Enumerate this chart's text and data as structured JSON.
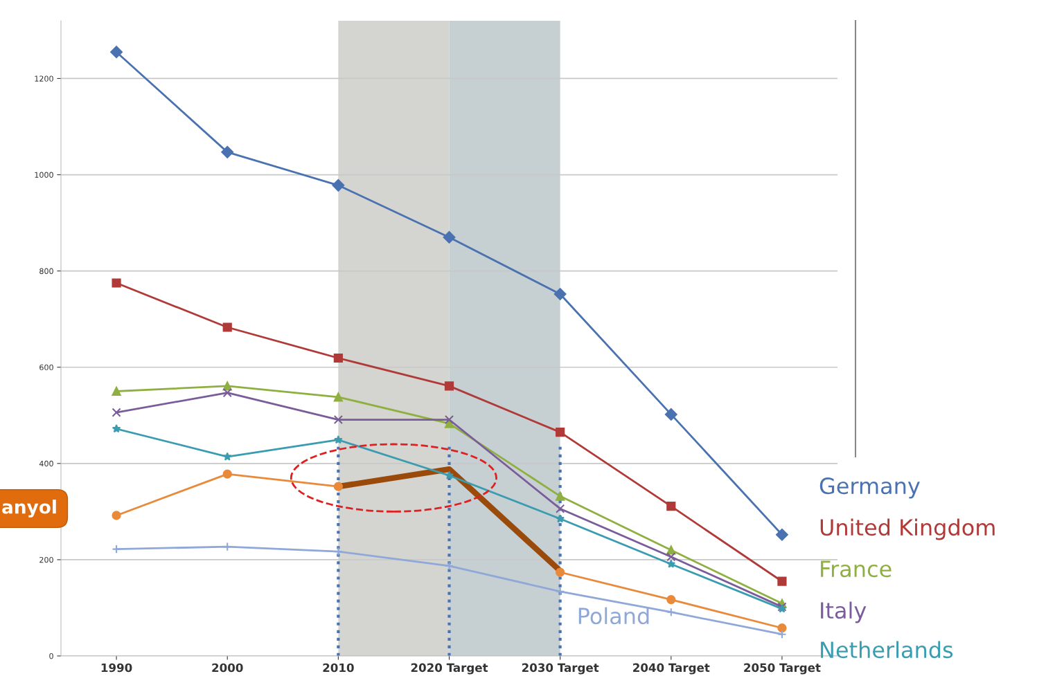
{
  "chart_data": {
    "type": "line",
    "categories": [
      "1990",
      "2000",
      "2010",
      "2020 Target",
      "2030 Target",
      "2040 Target",
      "2050 Target"
    ],
    "ylim": [
      0,
      1320
    ],
    "yticks": [
      0,
      200,
      400,
      600,
      800,
      1000,
      1200
    ],
    "grid": "y",
    "series": [
      {
        "name": "Germany",
        "color": "#4a72b0",
        "marker": "diamond",
        "values": [
          1255,
          1047,
          978,
          870,
          752,
          502,
          252
        ]
      },
      {
        "name": "United Kingdom",
        "color": "#b03a38",
        "marker": "square",
        "values": [
          775,
          683,
          619,
          561,
          465,
          311,
          155
        ]
      },
      {
        "name": "France",
        "color": "#8fb040",
        "marker": "triangle",
        "values": [
          550,
          561,
          538,
          483,
          332,
          220,
          109
        ]
      },
      {
        "name": "Italy",
        "color": "#7a5c9a",
        "marker": "cross",
        "values": [
          506,
          547,
          491,
          491,
          306,
          206,
          102
        ]
      },
      {
        "name": "Netherlands",
        "color": "#3a9cb0",
        "marker": "star",
        "values": [
          472,
          414,
          449,
          375,
          285,
          191,
          98
        ]
      },
      {
        "color": "#e88a3a",
        "marker": "circle",
        "values": [
          292,
          378,
          352,
          null,
          174,
          117,
          58
        ]
      },
      {
        "name": "Poland",
        "color": "#8fa8d8",
        "marker": "plus",
        "values": [
          222,
          227,
          217,
          187,
          134,
          91,
          45
        ]
      },
      {
        "color": "#9a4a0a",
        "marker": "none",
        "values": [
          null,
          null,
          352,
          388,
          177,
          null,
          null
        ]
      }
    ],
    "bands": [
      {
        "axis": "x",
        "from": "2010",
        "to": "2020 Target",
        "color": "#d4d4d0"
      },
      {
        "axis": "x",
        "from": "2020 Target",
        "to": "2030 Target",
        "color": "#c6cfd2"
      }
    ],
    "ref_lines": [
      {
        "axis": "x",
        "value": "2010",
        "color": "#4a72b0",
        "line_style": "dotted"
      },
      {
        "axis": "x",
        "value": "2020 Target",
        "color": "#4a72b0",
        "line_style": "dotted"
      },
      {
        "axis": "x",
        "value": "2030 Target",
        "color": "#4a72b0",
        "line_style": "dotted"
      }
    ],
    "annotations": [
      "anyol"
    ]
  }
}
